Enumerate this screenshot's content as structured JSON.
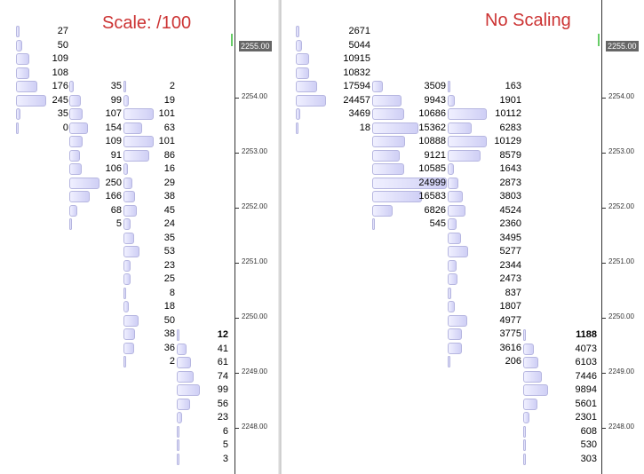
{
  "colors": {
    "bar_fill": "#d6d6f7",
    "bar_border": "#b6b6e0",
    "title": "#cc3333",
    "price_tag": "#666666",
    "axis": "#333333"
  },
  "price_axis": {
    "labels": [
      "2254.00",
      "2253.00",
      "2252.00",
      "2251.00",
      "2250.00",
      "2249.00",
      "2248.00"
    ],
    "current_price": "2255.00"
  },
  "panels": [
    {
      "title": "Scale: /100",
      "columns": [
        {
          "values": [
            "27",
            "50",
            "109",
            "108",
            "176",
            "245",
            "35",
            "0"
          ],
          "bold": []
        },
        {
          "values": [
            "35",
            "99",
            "107",
            "154",
            "109",
            "91",
            "106",
            "250",
            "166",
            "68",
            "5"
          ],
          "bold": []
        },
        {
          "values": [
            "2",
            "19",
            "101",
            "63",
            "101",
            "86",
            "16",
            "29",
            "38",
            "45",
            "24",
            "35",
            "53",
            "23",
            "25",
            "8",
            "18",
            "50",
            "38",
            "36",
            "2"
          ],
          "bold": []
        },
        {
          "values": [
            "12",
            "41",
            "61",
            "74",
            "99",
            "56",
            "23",
            "6",
            "5",
            "3"
          ],
          "bold": [
            "12"
          ]
        }
      ]
    },
    {
      "title": "No Scaling",
      "columns": [
        {
          "values": [
            "2671",
            "5044",
            "10915",
            "10832",
            "17594",
            "24457",
            "3469",
            "18"
          ],
          "bold": []
        },
        {
          "values": [
            "3509",
            "9943",
            "10686",
            "15362",
            "10888",
            "9121",
            "10585",
            "24999",
            "16583",
            "6826",
            "545"
          ],
          "bold": []
        },
        {
          "values": [
            "163",
            "1901",
            "10112",
            "6283",
            "10129",
            "8579",
            "1643",
            "2873",
            "3803",
            "4524",
            "2360",
            "3495",
            "5277",
            "2344",
            "2473",
            "837",
            "1807",
            "4977",
            "3775",
            "3616",
            "206"
          ],
          "bold": []
        },
        {
          "values": [
            "1188",
            "4073",
            "6103",
            "7446",
            "9894",
            "5601",
            "2301",
            "608",
            "530",
            "303"
          ],
          "bold": [
            "1188"
          ]
        }
      ]
    }
  ]
}
